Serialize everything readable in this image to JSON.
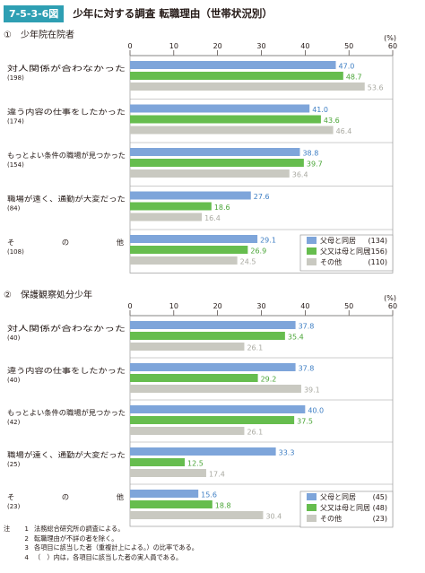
{
  "figure": {
    "number": "7-5-3-6図",
    "title": "少年に対する調査 転職理由（世帯状況別）"
  },
  "colors": {
    "mother": "#7ea5da",
    "father_or": "#66bd4e",
    "other": "#c9c9c1",
    "frame": "#9a9a9a",
    "badge": "#2e9fb3"
  },
  "chart_data": [
    {
      "type": "bar",
      "orientation": "horizontal",
      "title": "①　少年院在院者",
      "unit_label": "(%)",
      "xlim": [
        0,
        60
      ],
      "ticks": [
        0,
        10,
        20,
        30,
        40,
        50,
        60
      ],
      "categories": [
        {
          "label": "対人関係が合わなかった",
          "n": "(198)"
        },
        {
          "label": "違う内容の仕事をしたかった",
          "n": "(174)"
        },
        {
          "label": "もっとよい条件の職場が見つかった",
          "n": "(154)"
        },
        {
          "label": "職場が遠く、通勤が大変だった",
          "n": "(84)"
        },
        {
          "label": "その他",
          "n": "(108)"
        }
      ],
      "series": [
        {
          "name": "父母と同居",
          "count": "(134)",
          "values": [
            47.0,
            41.0,
            38.8,
            27.6,
            29.1
          ]
        },
        {
          "name": "父又は母と同居",
          "count": "(156)",
          "values": [
            48.7,
            43.6,
            39.7,
            18.6,
            26.9
          ]
        },
        {
          "name": "その他",
          "count": "(110)",
          "values": [
            53.6,
            46.4,
            36.4,
            16.4,
            24.5
          ]
        }
      ]
    },
    {
      "type": "bar",
      "orientation": "horizontal",
      "title": "②　保護観察処分少年",
      "unit_label": "(%)",
      "xlim": [
        0,
        60
      ],
      "ticks": [
        0,
        10,
        20,
        30,
        40,
        50,
        60
      ],
      "categories": [
        {
          "label": "対人関係が合わなかった",
          "n": "(40)"
        },
        {
          "label": "違う内容の仕事をしたかった",
          "n": "(40)"
        },
        {
          "label": "もっとよい条件の職場が見つかった",
          "n": "(42)"
        },
        {
          "label": "職場が遠く、通勤が大変だった",
          "n": "(25)"
        },
        {
          "label": "その他",
          "n": "(23)"
        }
      ],
      "series": [
        {
          "name": "父母と同居",
          "count": "(45)",
          "values": [
            37.8,
            37.8,
            40.0,
            33.3,
            15.6
          ]
        },
        {
          "name": "父又は母と同居",
          "count": "(48)",
          "values": [
            35.4,
            29.2,
            37.5,
            12.5,
            18.8
          ]
        },
        {
          "name": "その他",
          "count": "(23)",
          "values": [
            26.1,
            39.1,
            26.1,
            17.4,
            30.4
          ]
        }
      ]
    }
  ],
  "notes": {
    "prefix": "注",
    "items": [
      {
        "num": "1",
        "text": "法務総合研究所の調査による。"
      },
      {
        "num": "2",
        "text": "転職理由が不詳の者を除く。"
      },
      {
        "num": "3",
        "text": "各項目に該当した者（重複計上による。）の比率である。"
      },
      {
        "num": "4",
        "text": "（　）内は，各項目に該当した者の実人員である。"
      }
    ]
  }
}
